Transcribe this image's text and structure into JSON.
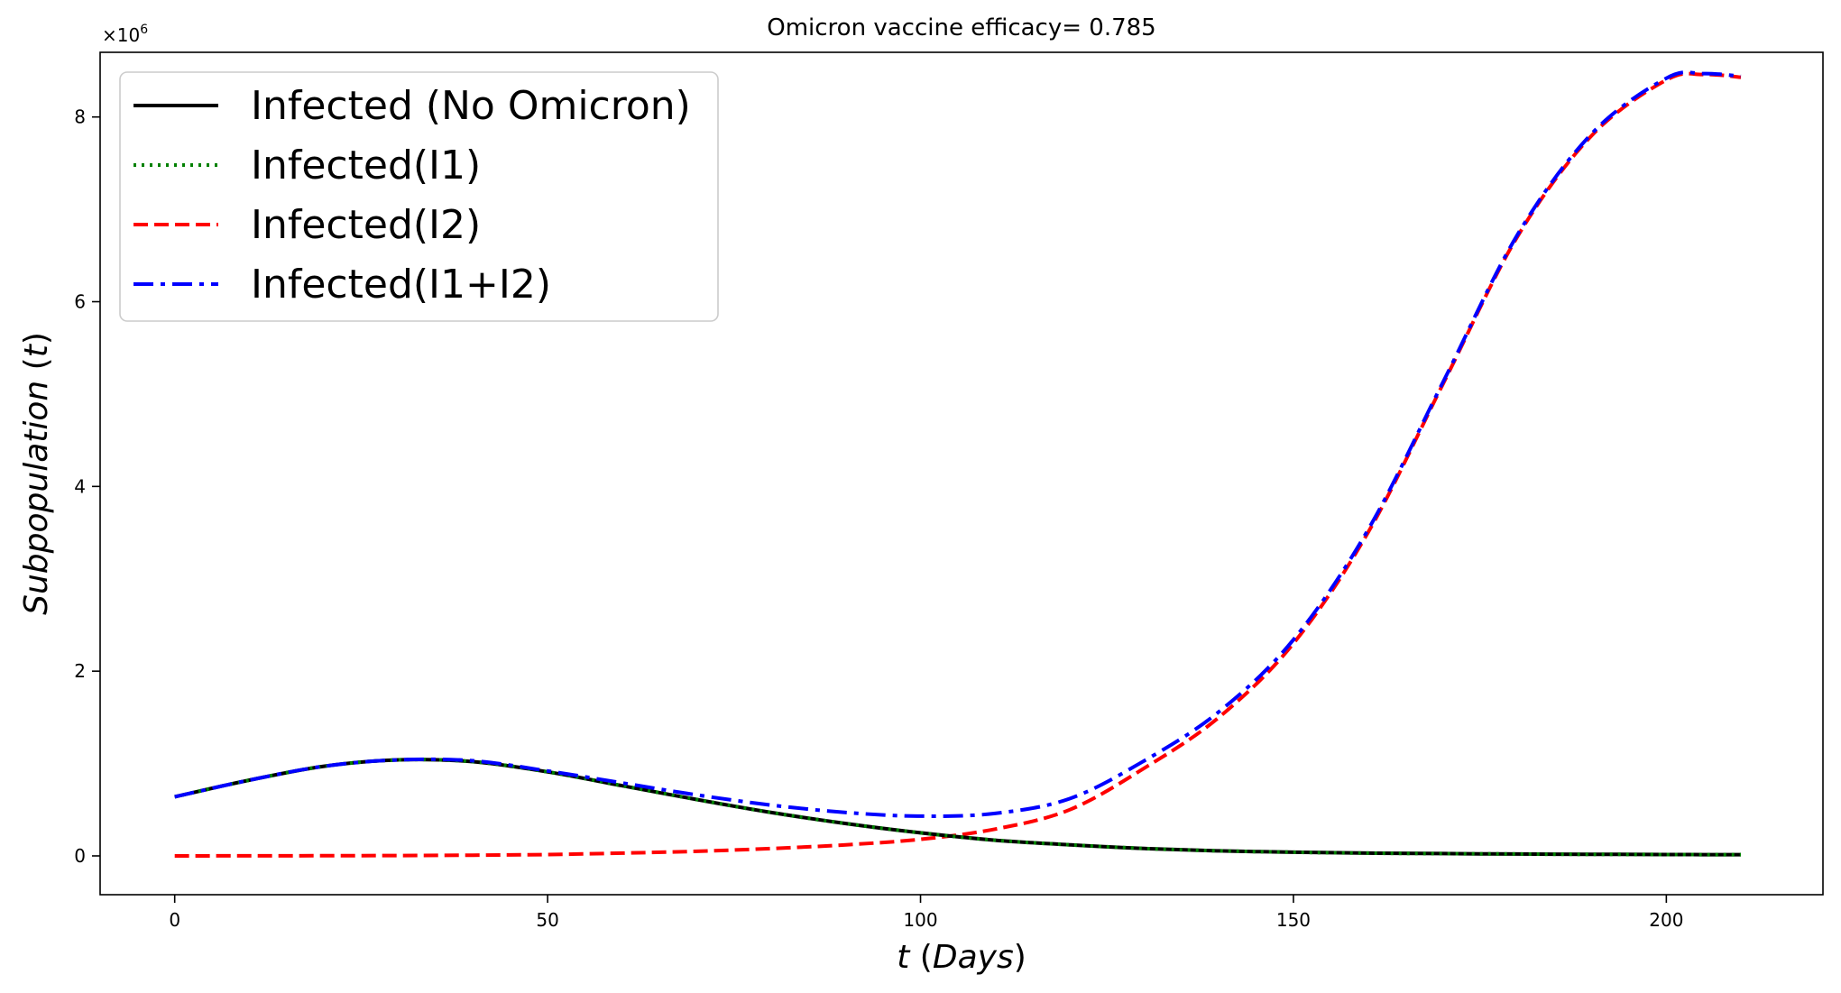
{
  "chart_data": {
    "type": "line",
    "title": "Omicron vaccine efficacy= 0.785",
    "xlabel_var": "t",
    "xlabel_unit": "Days",
    "ylabel_var": "Subpopulation",
    "ylabel_arg": "t",
    "y_multiplier": {
      "base": "×10",
      "exp": "6"
    },
    "xlim": [
      -10,
      221
    ],
    "ylim": [
      -0.42,
      8.7
    ],
    "xticks": [
      0,
      50,
      100,
      150,
      200
    ],
    "yticks": [
      0,
      2,
      4,
      6,
      8
    ],
    "xtick_labels": [
      "0",
      "50",
      "100",
      "150",
      "200"
    ],
    "ytick_labels": [
      "0",
      "2",
      "4",
      "6",
      "8"
    ],
    "grid": false,
    "legend_position": "top-left",
    "x": [
      0,
      10,
      20,
      30,
      40,
      50,
      60,
      70,
      80,
      90,
      100,
      110,
      120,
      130,
      140,
      150,
      160,
      170,
      180,
      190,
      200,
      205,
      210
    ],
    "series": [
      {
        "name": "Infected (No Omicron)",
        "color": "#000000",
        "style": "solid",
        "values": [
          0.64,
          0.82,
          0.97,
          1.04,
          1.02,
          0.91,
          0.76,
          0.61,
          0.47,
          0.35,
          0.25,
          0.17,
          0.12,
          0.08,
          0.055,
          0.04,
          0.03,
          0.025,
          0.02,
          0.017,
          0.015,
          0.014,
          0.014
        ]
      },
      {
        "name": "Infected(I1)",
        "color": "#008000",
        "style": "dotted",
        "values": [
          0.64,
          0.82,
          0.97,
          1.04,
          1.02,
          0.91,
          0.76,
          0.61,
          0.47,
          0.35,
          0.25,
          0.17,
          0.12,
          0.08,
          0.055,
          0.04,
          0.03,
          0.025,
          0.02,
          0.017,
          0.015,
          0.014,
          0.014
        ]
      },
      {
        "name": "Infected(I2)",
        "color": "#ff0000",
        "style": "dashed",
        "values": [
          0.0,
          0.001,
          0.002,
          0.004,
          0.008,
          0.015,
          0.03,
          0.05,
          0.08,
          0.12,
          0.18,
          0.29,
          0.5,
          0.95,
          1.5,
          2.3,
          3.5,
          5.1,
          6.7,
          7.8,
          8.4,
          8.46,
          8.43
        ]
      },
      {
        "name": "Infected(I1+I2)",
        "color": "#0000ff",
        "style": "dashdot",
        "values": [
          0.64,
          0.82,
          0.97,
          1.04,
          1.03,
          0.92,
          0.79,
          0.66,
          0.55,
          0.47,
          0.43,
          0.46,
          0.62,
          1.03,
          1.56,
          2.34,
          3.53,
          5.12,
          6.72,
          7.82,
          8.42,
          8.47,
          8.44
        ]
      }
    ]
  }
}
